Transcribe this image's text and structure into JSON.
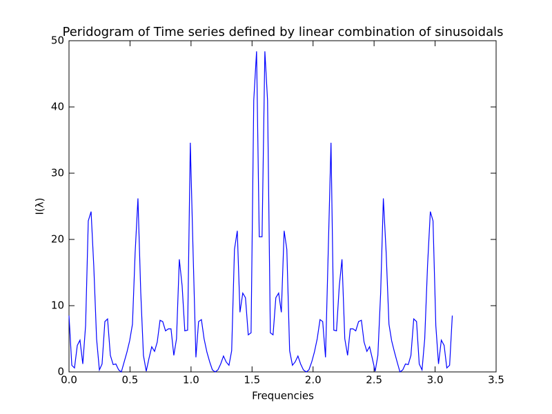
{
  "chart_data": {
    "type": "line",
    "title": "Peridogram of Time series defined by linear combination of sinusoidals",
    "xlabel": "Frequencies",
    "ylabel": "I(λ)",
    "color": "#0000ff",
    "xlim": [
      0,
      3.5
    ],
    "ylim": [
      0,
      50
    ],
    "xticks": [
      {
        "value": 0,
        "label": "0.0"
      },
      {
        "value": 0.5,
        "label": "0.5"
      },
      {
        "value": 1,
        "label": "1.0"
      },
      {
        "value": 1.5,
        "label": "1.5"
      },
      {
        "value": 2,
        "label": "2.0"
      },
      {
        "value": 2.5,
        "label": "2.5"
      },
      {
        "value": 3,
        "label": "3.0"
      },
      {
        "value": 3.5,
        "label": "3.5"
      }
    ],
    "yticks": [
      0,
      10,
      20,
      30,
      40,
      50
    ],
    "grid": false,
    "x": [
      0,
      0.023,
      0.045,
      0.068,
      0.09,
      0.113,
      0.136,
      0.158,
      0.181,
      0.203,
      0.226,
      0.249,
      0.271,
      0.294,
      0.316,
      0.339,
      0.362,
      0.384,
      0.407,
      0.429,
      0.452,
      0.475,
      0.497,
      0.52,
      0.542,
      0.565,
      0.588,
      0.61,
      0.633,
      0.655,
      0.678,
      0.701,
      0.723,
      0.746,
      0.768,
      0.791,
      0.814,
      0.836,
      0.859,
      0.881,
      0.904,
      0.927,
      0.949,
      0.972,
      0.994,
      1.017,
      1.04,
      1.062,
      1.085,
      1.107,
      1.13,
      1.153,
      1.175,
      1.198,
      1.22,
      1.243,
      1.266,
      1.288,
      1.311,
      1.333,
      1.356,
      1.379,
      1.401,
      1.424,
      1.446,
      1.469,
      1.492,
      1.514,
      1.537,
      1.559,
      1.582,
      1.605,
      1.627,
      1.65,
      1.672,
      1.695,
      1.718,
      1.74,
      1.763,
      1.785,
      1.808,
      1.831,
      1.853,
      1.876,
      1.898,
      1.921,
      1.944,
      1.966,
      1.989,
      2.011,
      2.034,
      2.057,
      2.079,
      2.102,
      2.124,
      2.147,
      2.17,
      2.192,
      2.215,
      2.237,
      2.26,
      2.283,
      2.305,
      2.328,
      2.35,
      2.373,
      2.396,
      2.418,
      2.441,
      2.463,
      2.486,
      2.509,
      2.531,
      2.554,
      2.576,
      2.599,
      2.622,
      2.644,
      2.667,
      2.689,
      2.712,
      2.735,
      2.757,
      2.78,
      2.802,
      2.825,
      2.848,
      2.87,
      2.893,
      2.915,
      2.938,
      2.961,
      2.983,
      3.006,
      3.028,
      3.051,
      3.074,
      3.096,
      3.119,
      3.141
    ],
    "values": [
      8.5,
      1.0,
      0.6,
      4.0,
      4.8,
      1.2,
      7,
      22.8,
      24.2,
      16,
      5,
      0.3,
      1.2,
      7.6,
      8,
      2.5,
      1.1,
      1.2,
      0.3,
      0,
      1.5,
      3,
      4.7,
      7.2,
      18,
      26.2,
      12,
      2.5,
      0.1,
      2,
      3.8,
      3.1,
      4.5,
      7.8,
      7.6,
      6.2,
      6.5,
      6.5,
      2.5,
      5,
      17,
      13,
      6.2,
      6.3,
      34.6,
      18,
      2.2,
      7.6,
      7.9,
      5,
      3,
      1.5,
      0.3,
      0,
      0.3,
      1.2,
      2.4,
      1.5,
      1.0,
      3.2,
      18.5,
      21.3,
      9,
      11.9,
      11.2,
      5.6,
      5.9,
      41,
      48.4,
      20.4,
      20.4,
      48.4,
      41,
      5.9,
      5.6,
      11.2,
      11.9,
      9,
      21.3,
      18.5,
      3.2,
      1.0,
      1.5,
      2.4,
      1.2,
      0.3,
      0,
      0.3,
      1.5,
      3,
      5,
      7.9,
      7.6,
      2.2,
      18,
      34.6,
      6.3,
      6.2,
      13,
      17,
      5,
      2.5,
      6.5,
      6.5,
      6.2,
      7.6,
      7.8,
      4.5,
      3.1,
      3.8,
      2,
      0.1,
      2.5,
      12,
      26.2,
      18,
      7.2,
      4.7,
      3,
      1.5,
      0,
      0.3,
      1.2,
      1.1,
      2.5,
      8,
      7.6,
      1.2,
      0.3,
      5,
      16,
      24.2,
      22.8,
      7,
      1.2,
      4.8,
      4.0,
      0.6,
      1.0,
      8.5
    ]
  }
}
